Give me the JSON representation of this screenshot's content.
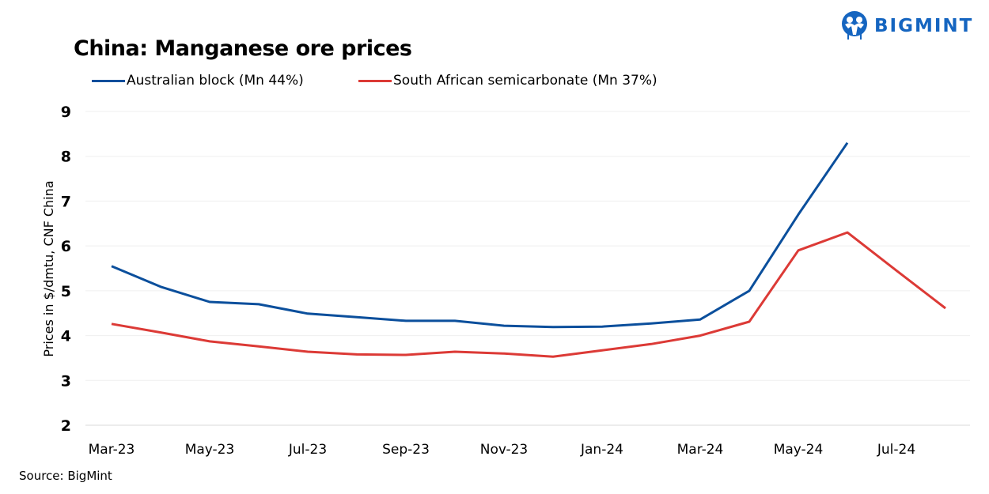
{
  "logo": {
    "text": "BIGMINT",
    "icon": "bigmint-people-logo-icon",
    "color": "#1565C0"
  },
  "source": "Source:  BigMint",
  "chart_data": {
    "type": "line",
    "title": "China: Manganese ore prices",
    "xlabel": "",
    "ylabel": "Prices in $/dmtu, CNF China",
    "ylim": [
      2,
      9
    ],
    "yticks": [
      "2",
      "3",
      "4",
      "5",
      "6",
      "7",
      "8",
      "9"
    ],
    "grid": true,
    "legend_position": "top-left",
    "x": [
      "Mar-23",
      "Apr-23",
      "May-23",
      "Jun-23",
      "Jul-23",
      "Aug-23",
      "Sep-23",
      "Oct-23",
      "Nov-23",
      "Dec-23",
      "Jan-24",
      "Feb-24",
      "Mar-24",
      "Apr-24",
      "May-24",
      "Jun-24",
      "Jul-24",
      "Aug-24"
    ],
    "xtick_labels": [
      "Mar-23",
      "May-23",
      "Jul-23",
      "Sep-23",
      "Nov-23",
      "Jan-24",
      "Mar-24",
      "May-24",
      "Jul-24"
    ],
    "series": [
      {
        "name": "Australian block (Mn 44%)",
        "color": "#0B4F9C",
        "values": [
          5.55,
          5.09,
          4.75,
          4.7,
          4.49,
          4.41,
          4.33,
          4.33,
          4.22,
          4.19,
          4.2,
          4.27,
          4.36,
          5.0,
          6.7,
          8.3,
          null,
          null
        ]
      },
      {
        "name": "South African semicarbonate (Mn 37%)",
        "color": "#DC3A36",
        "values": [
          4.26,
          4.07,
          3.87,
          3.76,
          3.64,
          3.58,
          3.57,
          3.64,
          3.6,
          3.53,
          3.67,
          3.81,
          4.0,
          4.31,
          5.9,
          6.3,
          5.45,
          4.61
        ]
      }
    ]
  }
}
